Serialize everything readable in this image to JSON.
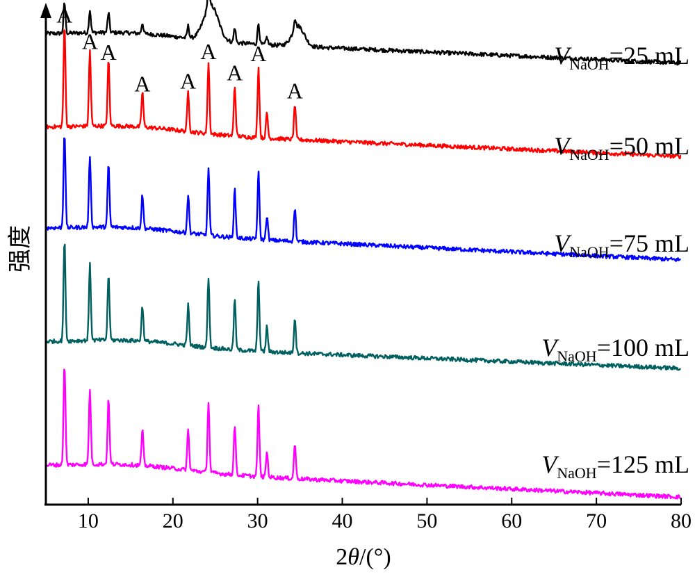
{
  "chart_data": {
    "type": "line",
    "title": "",
    "xlabel_prefix": "2",
    "xlabel_theta": "θ",
    "xlabel_suffix": "/(°)",
    "ylabel": "强度",
    "xlim": [
      5,
      80
    ],
    "x_ticks": [
      "10",
      "20",
      "30",
      "40",
      "50",
      "60",
      "70",
      "80"
    ],
    "y_ticks_shown": false,
    "grid": false,
    "legend": "inline-right",
    "peak_marker": "A",
    "peak_positions": [
      7.2,
      10.2,
      12.4,
      16.4,
      21.8,
      24.2,
      27.3,
      30.1,
      34.4
    ],
    "series": [
      {
        "name_var": "V",
        "name_sub": "NaOH",
        "name_val": "=25 mL",
        "color": "#000000",
        "baseline": 0.93,
        "drop": 0.055,
        "peak_scale": 0.3,
        "broad": [
          [
            24.5,
            0.07,
            1.2
          ],
          [
            34.8,
            0.04,
            1.0
          ]
        ]
      },
      {
        "name_var": "V",
        "name_sub": "NaOH",
        "name_val": "=50 mL",
        "color": "#ff0000",
        "baseline": 0.745,
        "drop": 0.055,
        "peak_scale": 1.0,
        "broad": []
      },
      {
        "name_var": "V",
        "name_sub": "NaOH",
        "name_val": "=75 mL",
        "color": "#0000ff",
        "baseline": 0.545,
        "drop": 0.06,
        "peak_scale": 0.95,
        "broad": []
      },
      {
        "name_var": "V",
        "name_sub": "NaOH",
        "name_val": "=100 mL",
        "color": "#006060",
        "baseline": 0.32,
        "drop": 0.05,
        "peak_scale": 1.0,
        "broad": []
      },
      {
        "name_var": "V",
        "name_sub": "NaOH",
        "name_val": "=125 mL",
        "color": "#ff00ff",
        "baseline": 0.075,
        "drop": 0.06,
        "peak_scale": 1.0,
        "broad": []
      }
    ],
    "peaks": [
      {
        "x": 7.2,
        "h": 0.2
      },
      {
        "x": 10.2,
        "h": 0.15
      },
      {
        "x": 12.4,
        "h": 0.13
      },
      {
        "x": 16.4,
        "h": 0.07
      },
      {
        "x": 21.8,
        "h": 0.08
      },
      {
        "x": 24.2,
        "h": 0.14
      },
      {
        "x": 27.3,
        "h": 0.1
      },
      {
        "x": 30.1,
        "h": 0.14
      },
      {
        "x": 31.1,
        "h": 0.05
      },
      {
        "x": 34.4,
        "h": 0.07
      }
    ]
  }
}
